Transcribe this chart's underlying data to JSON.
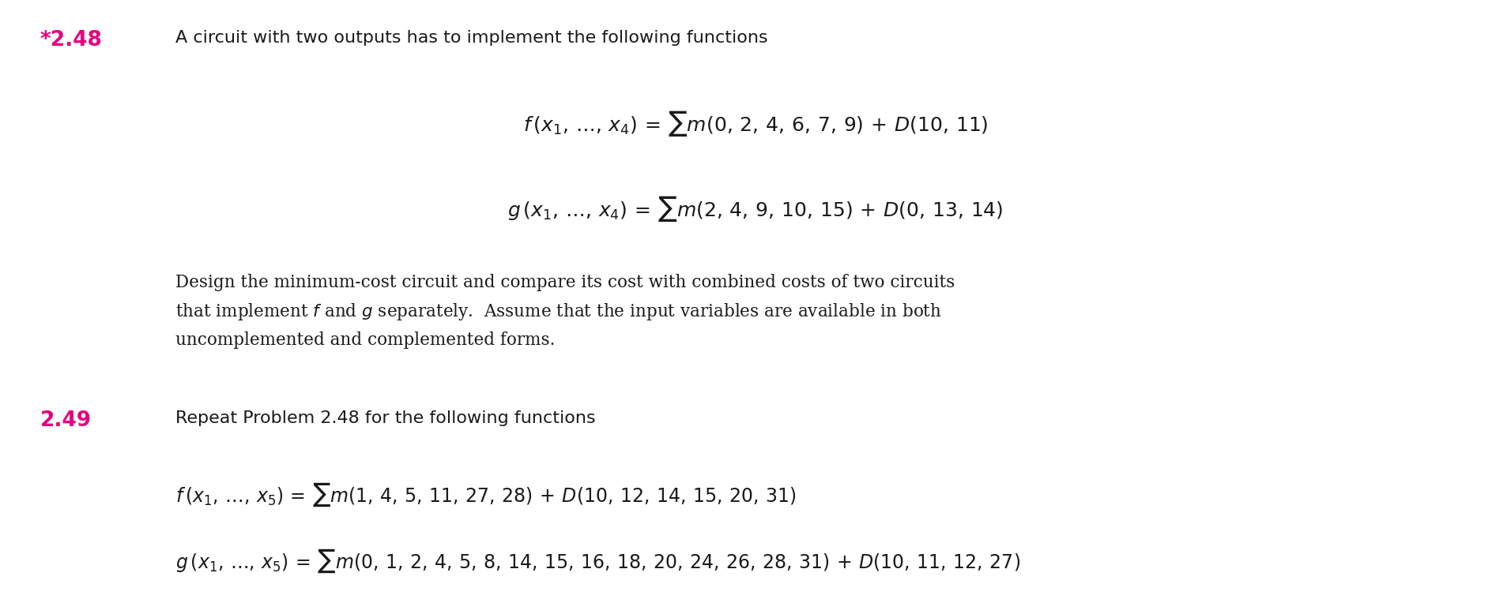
{
  "background_color": "#ffffff",
  "fig_width": 19.12,
  "fig_height": 7.78,
  "problem_248_number": "*2.48",
  "problem_248_color": "#e6007e",
  "problem_248_text": "A circuit with two outputs has to implement the following functions",
  "f_248": "f (x₁, . . . , x₄) = Σm(0, 2, 4, 6, 7, 9) + D(10, 11)",
  "g_248": "g (x₁, . . . , x₄) = Σm(2, 4, 9, 10, 15) + D(0, 13, 14)",
  "design_text": "Design the minimum-cost circuit and compare its cost with combined costs of two circuits\nthat implement f and g separately.  Assume that the input variables are available in both\nuncomplemented and complemented forms.",
  "problem_249_number": "2.49",
  "problem_249_color": "#e6007e",
  "problem_249_text": "Repeat Problem 2.48 for the following functions",
  "f_249": "f (x₁, . . . , x₅) = Σm(1, 4, 5, 11, 27, 28) + D(10, 12, 14, 15, 20, 31)",
  "g_249": "g (x₁, . . . , x₅) = Σm(0, 1, 2, 4, 5, 8, 14, 15, 16, 18, 20, 24, 26, 28, 31) + D(10, 11, 12, 27)"
}
